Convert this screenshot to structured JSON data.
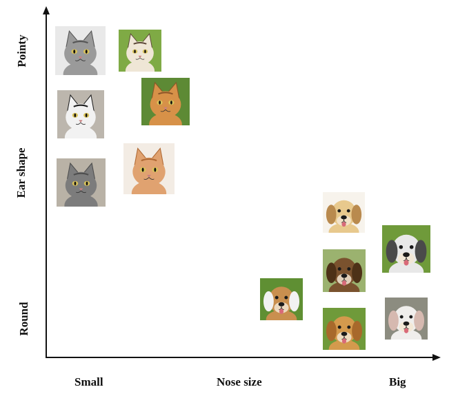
{
  "axes": {
    "x_title": "Nose size",
    "x_left": "Small",
    "x_right": "Big",
    "y_title": "Ear shape",
    "y_top": "Pointy",
    "y_bottom": "Round"
  },
  "colors": {
    "axis": "#111111",
    "cat_gray": "#8d8d8d",
    "cat_orange": "#d9914a",
    "dog_golden": "#d9a45a",
    "dog_brown": "#7a4f2a",
    "grass": "#6f9a3a"
  },
  "photos": [
    {
      "kind": "cat",
      "name": "tabby-kitten-photo",
      "fur": "#9a9a9a",
      "accent": "#555555",
      "bg": "#e9e9e9"
    },
    {
      "kind": "cat",
      "name": "siamese-kitten-photo",
      "fur": "#efe6d6",
      "accent": "#5a4536",
      "bg": "#7faa45"
    },
    {
      "kind": "cat",
      "name": "black-white-cat-photo",
      "fur": "#f2f2f2",
      "accent": "#1d1d1d",
      "bg": "#bcb6ad"
    },
    {
      "kind": "cat",
      "name": "orange-cat-lying-photo",
      "fur": "#d79148",
      "accent": "#8a5427",
      "bg": "#5d8a35"
    },
    {
      "kind": "cat",
      "name": "gray-cat-photo",
      "fur": "#7c7c7c",
      "accent": "#4e4e4e",
      "bg": "#b9b2a6"
    },
    {
      "kind": "cat",
      "name": "orange-kitten-photo",
      "fur": "#e0a270",
      "accent": "#b06a35",
      "bg": "#f3ece4"
    },
    {
      "kind": "dog",
      "name": "golden-puppy-photo",
      "fur": "#e8c98d",
      "accent": "#b98a4e",
      "bg": "#f7f3ec"
    },
    {
      "kind": "dog",
      "name": "husky-photo",
      "fur": "#e8e8e8",
      "accent": "#4a4a4a",
      "bg": "#6f9a3a"
    },
    {
      "kind": "dog",
      "name": "brown-labrador-photo",
      "fur": "#7a522e",
      "accent": "#4d3117",
      "bg": "#9bb26f"
    },
    {
      "kind": "dog",
      "name": "beagle-photo",
      "fur": "#c98f4f",
      "accent": "#f2f2f2",
      "bg": "#5f8f33"
    },
    {
      "kind": "dog",
      "name": "golden-retriever-photo",
      "fur": "#d49a4d",
      "accent": "#a8692b",
      "bg": "#6f9a3a"
    },
    {
      "kind": "dog",
      "name": "white-pitbull-photo",
      "fur": "#f0eeec",
      "accent": "#d6b9b0",
      "bg": "#8c8c80"
    }
  ]
}
